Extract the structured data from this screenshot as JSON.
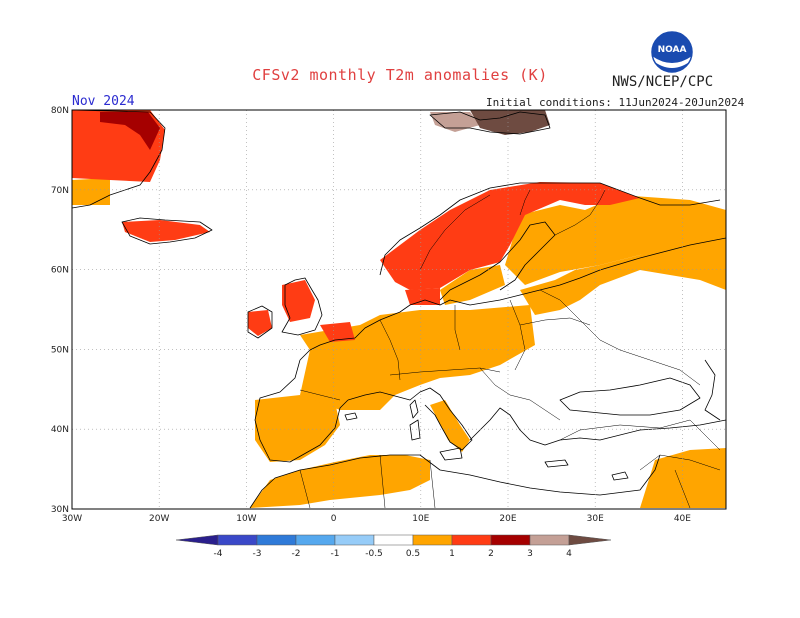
{
  "title": "CFSv2 monthly T2m anomalies (K)",
  "organization": "NWS/NCEP/CPC",
  "logo_text": "NOAA",
  "valid_month": "Nov 2024",
  "initial_conditions": "Initial conditions: 11Jun2024-20Jun2024",
  "colors": {
    "title": "#e04040",
    "month": "#2b2bd0",
    "land_outline": "#000000",
    "grid": "#9a9a9a",
    "anomaly_0_5_to_1": "#ffa500",
    "anomaly_1_to_2": "#ff3c14",
    "anomaly_2_to_3": "#a50000",
    "anomaly_3_to_4": "#c4a096",
    "anomaly_over_4": "#6e4b41"
  },
  "chart_data": {
    "type": "heatmap",
    "map_region": "Europe",
    "lon_range": [
      -30,
      45
    ],
    "lat_range": [
      30,
      80
    ],
    "lat_ticks": [
      "30N",
      "40N",
      "50N",
      "60N",
      "70N",
      "80N"
    ],
    "lon_ticks": [
      "30W",
      "20W",
      "10W",
      "0",
      "10E",
      "20E",
      "30E",
      "40E"
    ],
    "grid": true,
    "colorbar": {
      "orientation": "horizontal",
      "boundary_labels": [
        "-4",
        "-3",
        "-2",
        "-1",
        "-0.5",
        "0.5",
        "1",
        "2",
        "3",
        "4"
      ],
      "colors": [
        "#2a1f8c",
        "#3a48c8",
        "#2f7ad8",
        "#55a8ee",
        "#96ccf8",
        "#ffffff",
        "#ffa500",
        "#ff3c14",
        "#a50000",
        "#c4a096",
        "#6e4b41"
      ]
    },
    "anomaly_regions": [
      {
        "region": "Greenland east coast",
        "class": "1 to 2 / 2 to 3"
      },
      {
        "region": "Iceland",
        "class": "1 to 2"
      },
      {
        "region": "Svalbard",
        "class": "3 to 4 / >4"
      },
      {
        "region": "Scandinavia",
        "class": "1 to 2"
      },
      {
        "region": "British Isles",
        "class": "1 to 2"
      },
      {
        "region": "Western and Central Europe",
        "class": "0.5 to 1"
      },
      {
        "region": "Iberian Peninsula",
        "class": "0.5 to 1"
      },
      {
        "region": "Finland and NW Russia",
        "class": "0.5 to 1"
      },
      {
        "region": "North Africa coast",
        "class": "0.5 to 1"
      },
      {
        "region": "Middle East",
        "class": "0.5 to 1"
      }
    ]
  }
}
